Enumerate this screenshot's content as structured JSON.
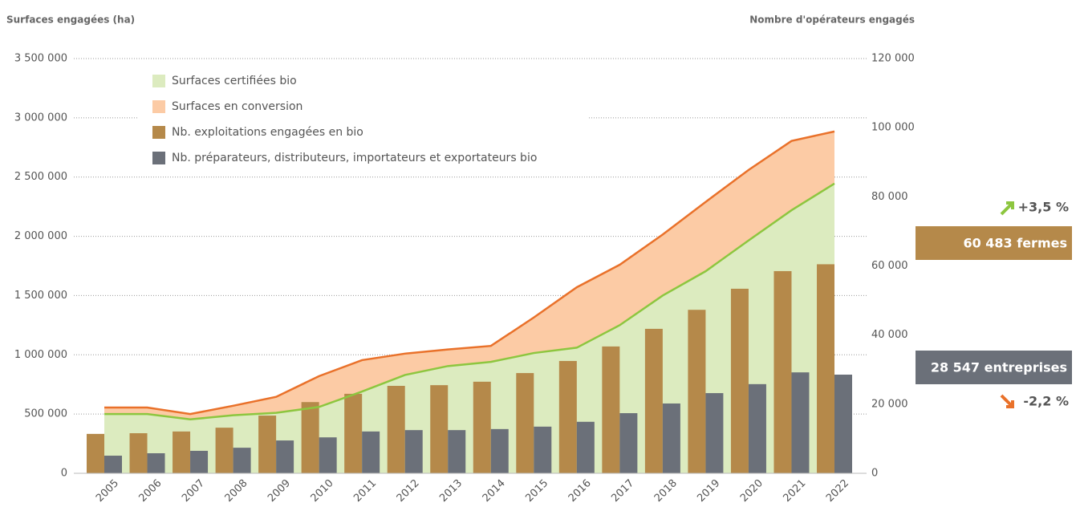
{
  "chart_data": {
    "type": "combo",
    "y_label": "Surfaces engagées (ha)",
    "y2_label": "Nombre d'opérateurs engagés",
    "categories": [
      "2005",
      "2006",
      "2007",
      "2008",
      "2009",
      "2010",
      "2011",
      "2012",
      "2013",
      "2014",
      "2015",
      "2016",
      "2017",
      "2018",
      "2019",
      "2020",
      "2021",
      "2022"
    ],
    "ylim": [
      0,
      3500000
    ],
    "yticks": [
      0,
      {
        "value": 500000,
        "label": "500 000"
      },
      {
        "value": 1000000,
        "label": "1 000 000"
      },
      {
        "value": 1500000,
        "label": "1 500 000"
      },
      {
        "value": 2000000,
        "label": "2 000 000"
      },
      {
        "value": 2500000,
        "label": "2 500 000"
      },
      {
        "value": 3000000,
        "label": "3 000 000"
      },
      {
        "value": 3500000,
        "label": "3 500 000"
      }
    ],
    "y2lim": [
      0,
      120000
    ],
    "y2ticks": [
      0,
      {
        "value": 20000,
        "label": "20 000"
      },
      {
        "value": 40000,
        "label": "40 000"
      },
      {
        "value": 60000,
        "label": "60 000"
      },
      {
        "value": 80000,
        "label": "80 000"
      },
      {
        "value": 100000,
        "label": "100 000"
      },
      {
        "value": 120000,
        "label": "120 000"
      }
    ],
    "grid": true,
    "series": [
      {
        "name": "Surfaces certifiées bio",
        "type": "area",
        "color": "#dcebbf",
        "line_color": "#8dc63f",
        "values": [
          500000,
          500000,
          455000,
          490000,
          510000,
          560000,
          690000,
          830000,
          905000,
          940000,
          1015000,
          1060000,
          1250000,
          1500000,
          1705000,
          1965000,
          2220000,
          2445000
        ]
      },
      {
        "name": "Surfaces en conversion",
        "type": "area",
        "stacked": true,
        "color": "#fccba5",
        "line_color": "#e9712a",
        "values": [
          55000,
          55000,
          45000,
          80000,
          135000,
          260000,
          265000,
          180000,
          140000,
          135000,
          300000,
          510000,
          510000,
          515000,
          585000,
          595000,
          585000,
          440000
        ]
      },
      {
        "name": "Nb. exploitations engagées en bio",
        "type": "bar",
        "axis": "y2",
        "color": "#b5894a",
        "values": [
          11400,
          11600,
          12100,
          13200,
          16700,
          20600,
          23000,
          25300,
          25500,
          26500,
          29000,
          32500,
          36700,
          41800,
          47300,
          53400,
          58500,
          60483
        ]
      },
      {
        "name": "Nb. préparateurs, distributeurs, importateurs et exportateurs bio",
        "type": "bar",
        "axis": "y2",
        "color": "#6b7079",
        "values": [
          5100,
          5800,
          6500,
          7400,
          9500,
          10400,
          12100,
          12500,
          12500,
          12800,
          13500,
          14900,
          17400,
          20200,
          23200,
          25800,
          29200,
          28547
        ]
      }
    ],
    "annotations": [
      "+3,5 %",
      "60 483 fermes",
      "28 547 entreprises",
      "-2,2 %"
    ]
  }
}
